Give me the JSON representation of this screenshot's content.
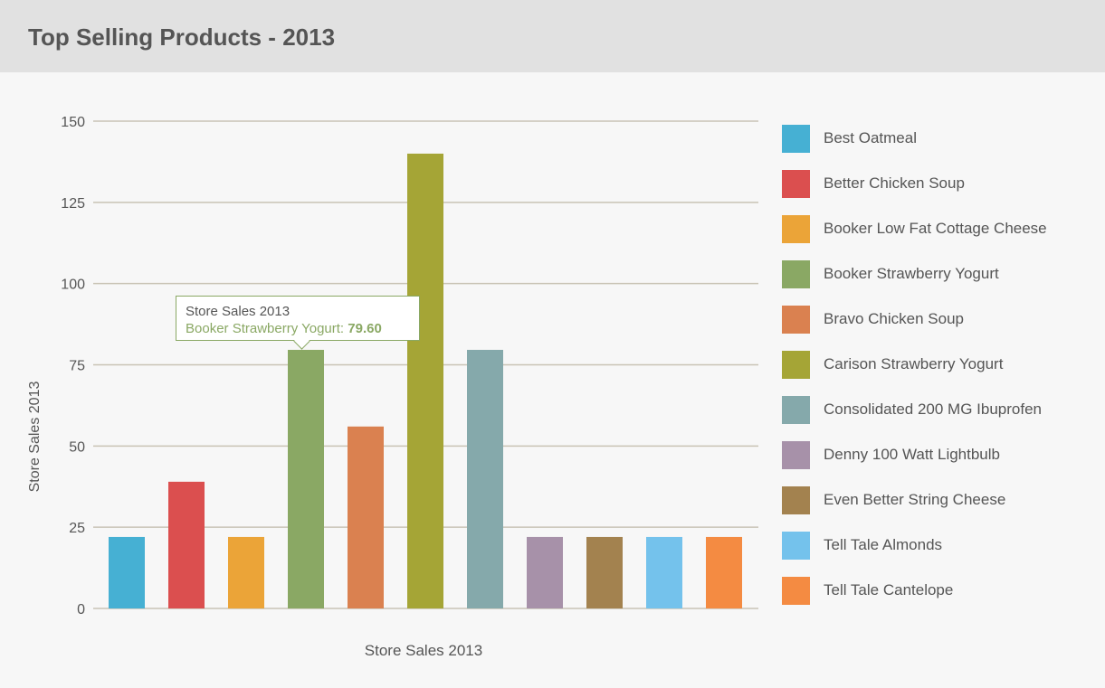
{
  "header": {
    "title": "Top Selling Products - 2013"
  },
  "tooltip": {
    "title": "Store Sales 2013",
    "label": "Booker Strawberry Yogurt: ",
    "value": "79.60",
    "color": "#8aa864"
  },
  "chart_data": {
    "type": "bar",
    "title": "Top Selling Products - 2013",
    "xlabel": "Store Sales 2013",
    "ylabel": "Store Sales 2013",
    "ylim": [
      0,
      150
    ],
    "yticks": [
      0,
      25,
      50,
      75,
      100,
      125,
      150
    ],
    "grid": true,
    "legend_position": "right",
    "categories": [
      "Store Sales 2013"
    ],
    "series": [
      {
        "name": "Best Oatmeal",
        "values": [
          22
        ],
        "color": "#46b0d3"
      },
      {
        "name": "Better Chicken Soup",
        "values": [
          39
        ],
        "color": "#db4f4f"
      },
      {
        "name": "Booker Low Fat Cottage Cheese",
        "values": [
          22
        ],
        "color": "#eba438"
      },
      {
        "name": "Booker Strawberry Yogurt",
        "values": [
          79.6
        ],
        "color": "#8aa864"
      },
      {
        "name": "Bravo Chicken Soup",
        "values": [
          56
        ],
        "color": "#da8150"
      },
      {
        "name": "Carison Strawberry Yogurt",
        "values": [
          140
        ],
        "color": "#a5a536"
      },
      {
        "name": "Consolidated 200 MG Ibuprofen",
        "values": [
          79.6
        ],
        "color": "#85a9ab"
      },
      {
        "name": "Denny 100 Watt Lightbulb",
        "values": [
          22
        ],
        "color": "#a791a9"
      },
      {
        "name": "Even Better String Cheese",
        "values": [
          22
        ],
        "color": "#a3824f"
      },
      {
        "name": "Tell Tale Almonds",
        "values": [
          22
        ],
        "color": "#74c2ec"
      },
      {
        "name": "Tell Tale Cantelope",
        "values": [
          22
        ],
        "color": "#f48b42"
      }
    ]
  }
}
